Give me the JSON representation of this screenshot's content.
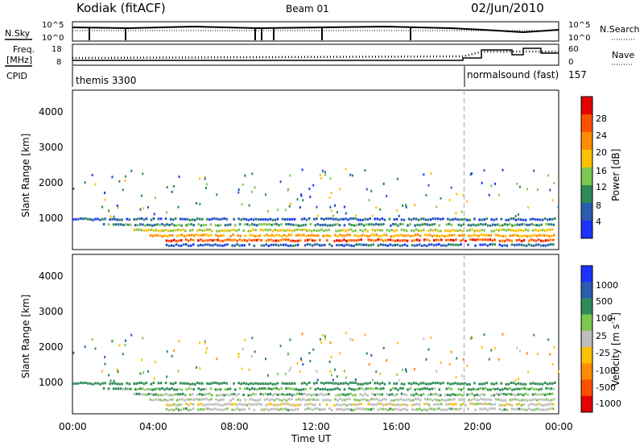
{
  "header": {
    "title": "Kodiak (fitACF)",
    "beam": "Beam 01",
    "date": "02/Jun/2010"
  },
  "noise_panel": {
    "left_label": "N.Sky",
    "right_label": "N.Search",
    "left_ticks": [
      "10^5",
      "10^0"
    ],
    "right_ticks": [
      "10^5",
      "10^0"
    ]
  },
  "freq_panel": {
    "left_label_top": "Freq.",
    "left_label_bottom": "[MHz]",
    "right_label": "Nave",
    "left_ticks": [
      "18",
      "8"
    ],
    "right_ticks": [
      "60",
      "0"
    ]
  },
  "cpid": {
    "label": "CPID",
    "first_program": "themis 3300",
    "second_program": "normalsound (fast)",
    "second_code": "157",
    "switch_hour": 19.33
  },
  "range_axis": {
    "label": "Slant Range [km]",
    "ticks": [
      "1000",
      "2000",
      "3000",
      "4000"
    ]
  },
  "time_axis": {
    "label": "Time UT",
    "ticks": [
      "00:00",
      "04:00",
      "08:00",
      "12:00",
      "16:00",
      "20:00",
      "00:00"
    ]
  },
  "power_scale": {
    "label": "Power [dB]",
    "ticks": [
      "4",
      "8",
      "12",
      "16",
      "20",
      "24",
      "28"
    ],
    "colors": [
      "#1e32ff",
      "#2a5caf",
      "#2e8b57",
      "#7dc850",
      "#ffc000",
      "#ff8c00",
      "#ff5000",
      "#e60000"
    ]
  },
  "velocity_scale": {
    "label": "Velocity [m s",
    "label_exponent": "-1",
    "label_tail": "]",
    "ticks": [
      "1000",
      "500",
      "100",
      "25",
      "-25",
      "-100",
      "-500",
      "-1000"
    ],
    "colors": [
      "#1e32ff",
      "#2a5caf",
      "#2e8b57",
      "#7dc850",
      "#bebebe",
      "#ffc000",
      "#ff8c00",
      "#ff5000",
      "#e60000"
    ]
  },
  "chart_data": {
    "type": "heatmap",
    "x_range_hours": [
      0,
      24
    ],
    "y_range_km": [
      180,
      4500
    ],
    "backscatter_bands": [
      {
        "range_km": 1000,
        "start_h": 0.0,
        "end_h": 23.8,
        "power_db": 6,
        "velocity_ms": 150
      },
      {
        "range_km": 850,
        "start_h": 1.5,
        "end_h": 23.8,
        "power_db": 10,
        "velocity_ms": 80
      },
      {
        "range_km": 700,
        "start_h": 3.0,
        "end_h": 23.8,
        "power_db": 16,
        "velocity_ms": 40
      },
      {
        "range_km": 560,
        "start_h": 3.8,
        "end_h": 23.8,
        "power_db": 20,
        "velocity_ms": 0
      },
      {
        "range_km": 430,
        "start_h": 4.6,
        "end_h": 23.8,
        "power_db": 26,
        "velocity_ms": -30
      },
      {
        "range_km": 300,
        "start_h": 4.6,
        "end_h": 23.8,
        "power_db": 6,
        "velocity_ms": 10
      }
    ]
  }
}
